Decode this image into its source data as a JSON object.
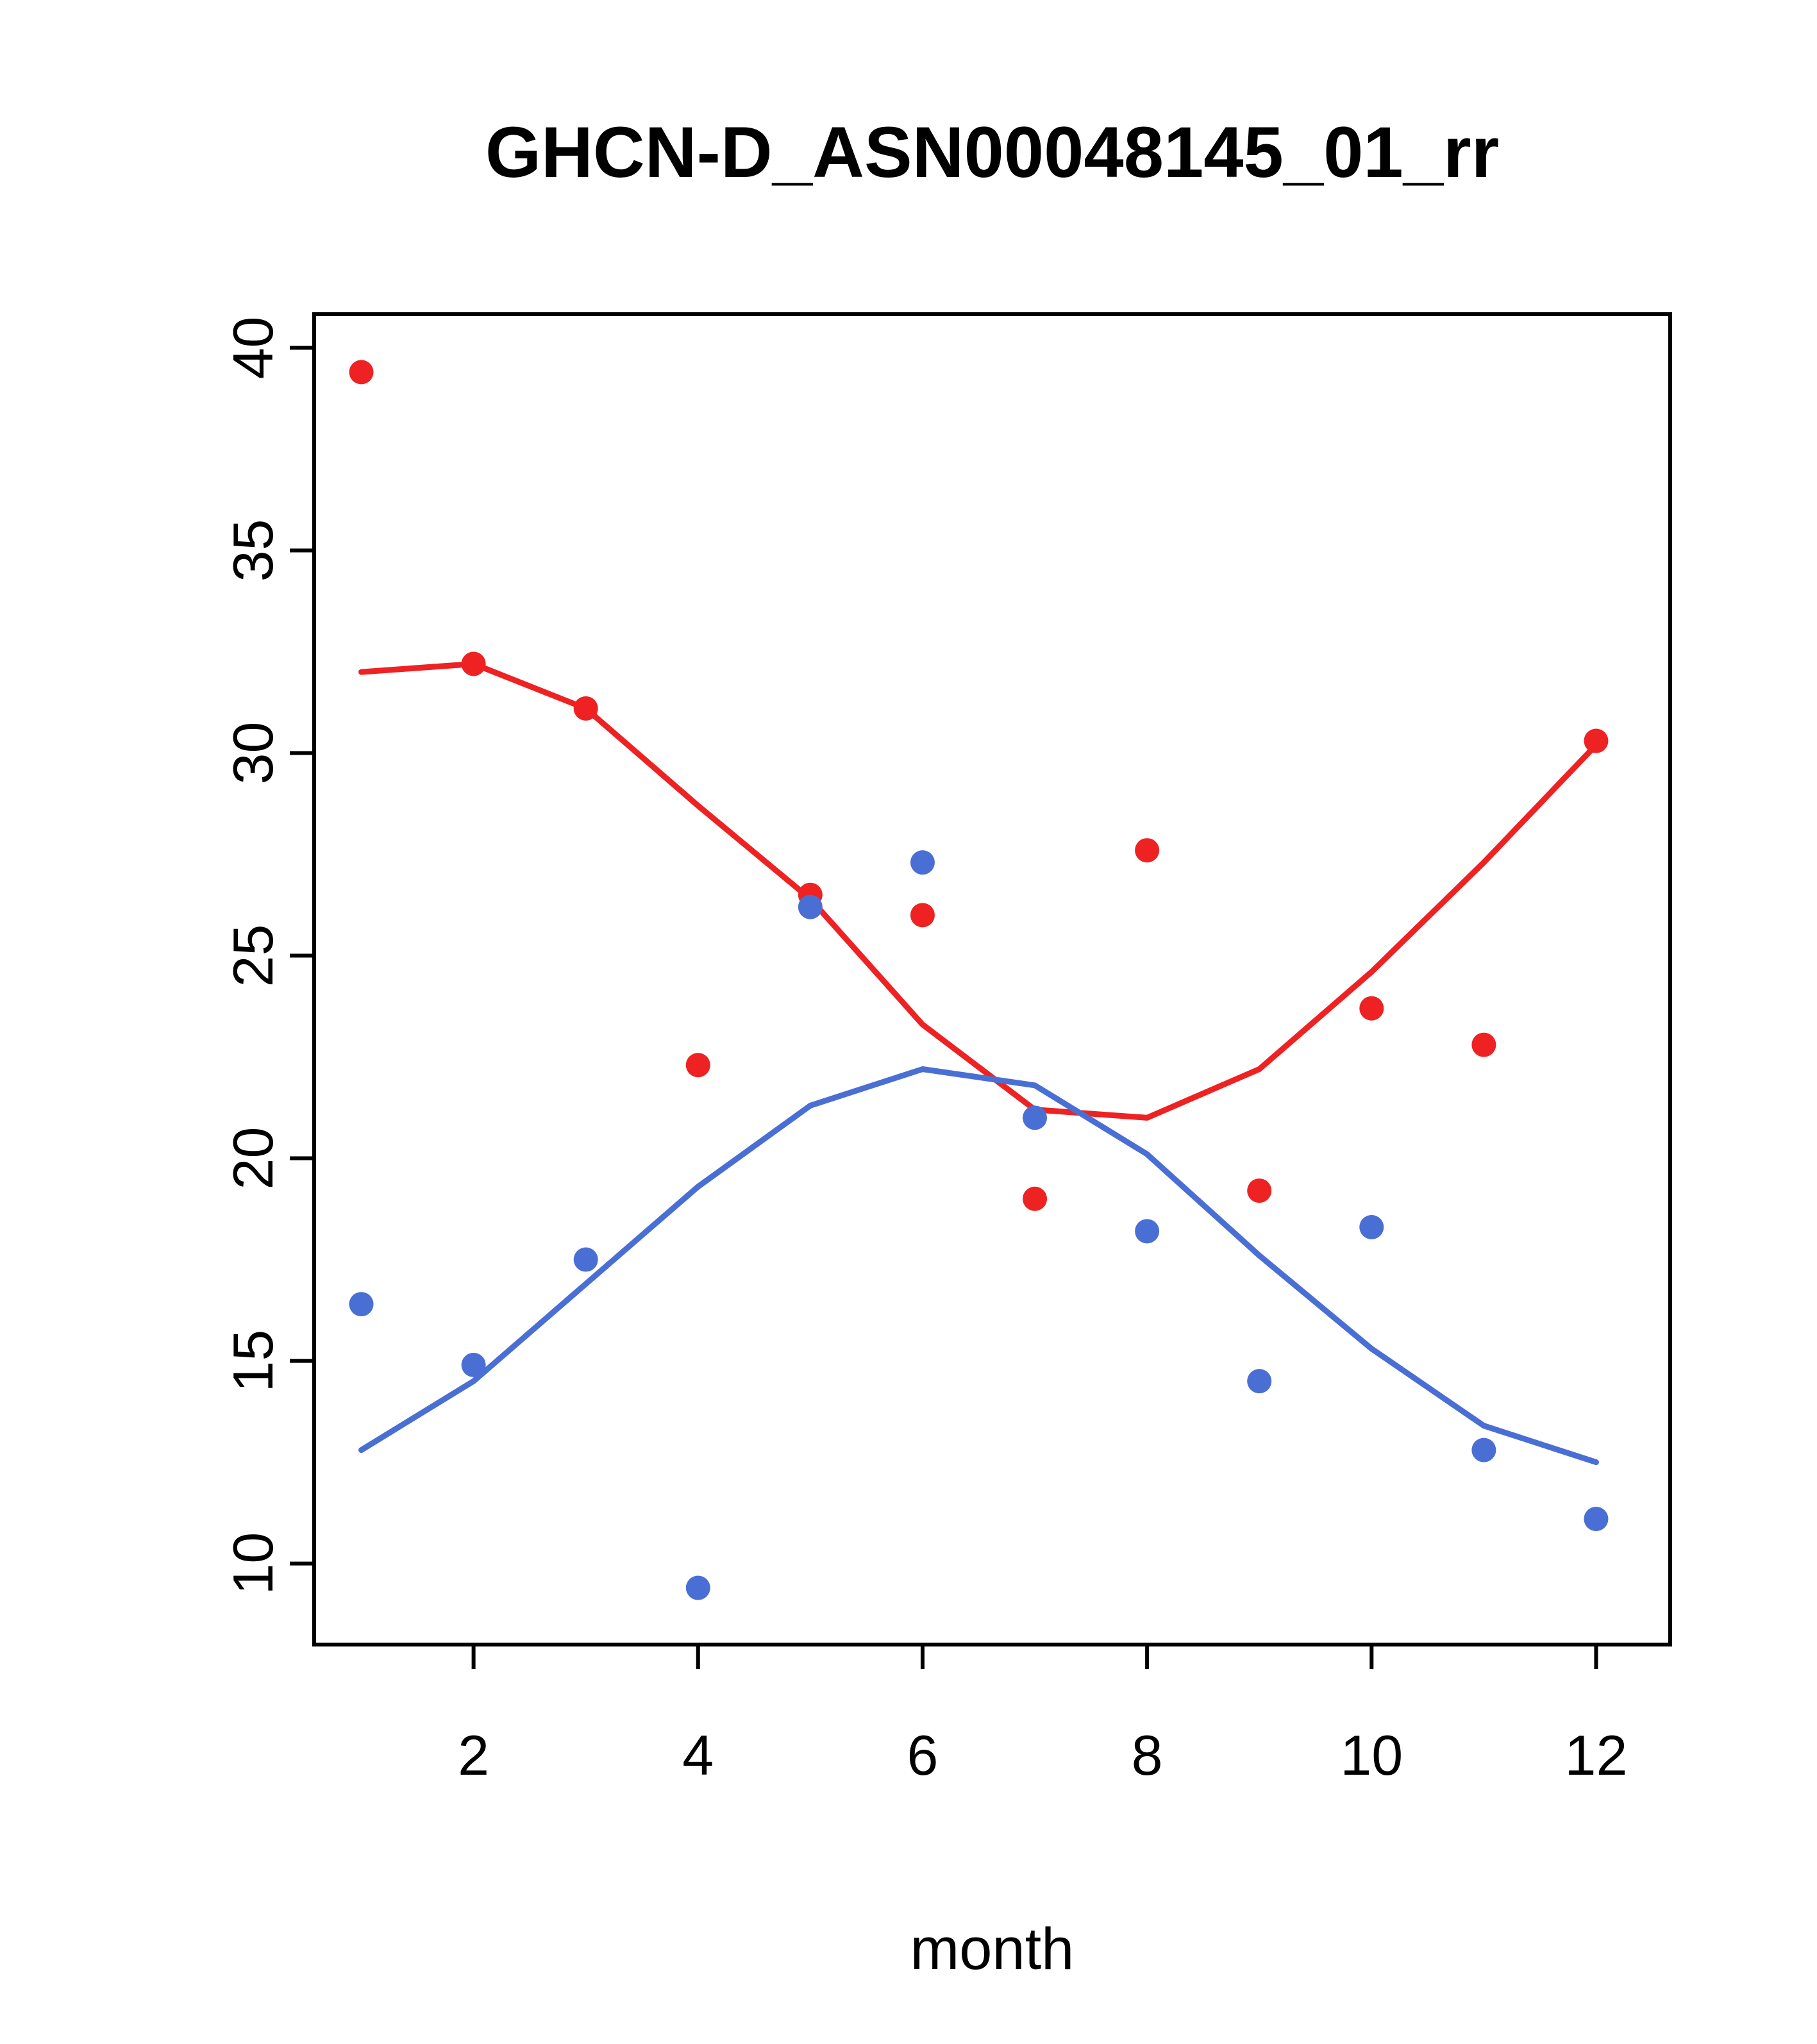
{
  "figure": {
    "background": "#ffffff"
  },
  "chart_data": {
    "type": "scatter",
    "title": "GHCN-D_ASN00048145_01_rr",
    "xlabel": "month",
    "ylabel": "",
    "x": [
      1,
      2,
      3,
      4,
      5,
      6,
      7,
      8,
      9,
      10,
      11,
      12
    ],
    "xticks": [
      2,
      4,
      6,
      8,
      10,
      12
    ],
    "yticks": [
      10,
      15,
      20,
      25,
      30,
      35,
      40
    ],
    "x_range": [
      0.58,
      12.66
    ],
    "y_range": [
      8.0,
      40.83
    ],
    "grid": false,
    "legend": "none",
    "colors": {
      "series_red": "#ee2222",
      "series_blue": "#4a6fd4",
      "axis": "#000000"
    },
    "series": [
      {
        "name": "red-points",
        "kind": "points",
        "color_key": "series_red",
        "values": [
          39.4,
          32.2,
          31.1,
          22.3,
          26.5,
          26.0,
          19.0,
          27.6,
          19.2,
          23.7,
          22.8,
          30.3
        ]
      },
      {
        "name": "red-smooth-line",
        "kind": "line",
        "color_key": "series_red",
        "values": [
          32.0,
          32.2,
          31.1,
          28.7,
          26.4,
          23.3,
          21.2,
          21.0,
          22.2,
          24.6,
          27.3,
          30.2
        ]
      },
      {
        "name": "blue-points",
        "kind": "points",
        "color_key": "series_blue",
        "values": [
          16.4,
          14.9,
          17.5,
          9.4,
          26.2,
          27.3,
          21.0,
          18.2,
          14.5,
          18.3,
          12.8,
          11.1
        ]
      },
      {
        "name": "blue-smooth-line",
        "kind": "line",
        "color_key": "series_blue",
        "values": [
          12.8,
          14.5,
          16.9,
          19.3,
          21.3,
          22.2,
          21.8,
          20.1,
          17.6,
          15.3,
          13.4,
          12.5
        ]
      }
    ]
  }
}
